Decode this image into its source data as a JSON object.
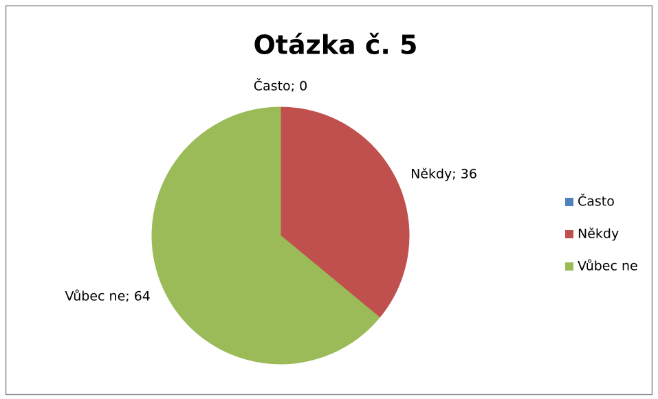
{
  "chart_data": {
    "type": "pie",
    "title": "Otázka č. 5",
    "categories": [
      "Často",
      "Někdy",
      "Vůbec ne"
    ],
    "values": [
      0,
      36,
      64
    ],
    "value_labels": [
      "Často; 0",
      "Někdy; 36",
      "Vůbec ne; 64"
    ],
    "colors": [
      "#4f81bd",
      "#c0504d",
      "#9bbb59"
    ],
    "legend": "right"
  }
}
